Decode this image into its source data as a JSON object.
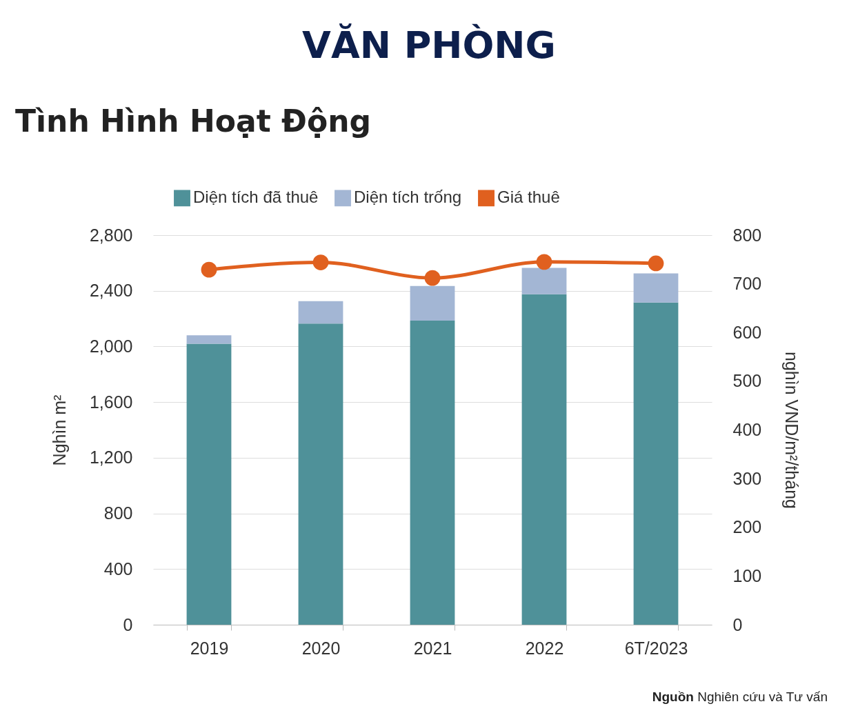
{
  "chart_data": {
    "type": "bar",
    "title": "VĂN PHÒNG",
    "subtitle": "Tình Hình Hoạt Động",
    "ylabel": "Nghìn m²",
    "y2label": "nghìn VND/m²/tháng",
    "categories": [
      "2019",
      "2020",
      "2021",
      "2022",
      "6T/2023"
    ],
    "series": [
      {
        "name": "Diện tích đã thuê",
        "color": "#4f9199",
        "values": [
          2020,
          2165,
          2185,
          2375,
          2315
        ]
      },
      {
        "name": "Diện tích trống",
        "color": "#a3b6d4",
        "values": [
          60,
          160,
          250,
          190,
          210
        ]
      },
      {
        "name": "Giá thuê",
        "type": "line",
        "axis": "y2",
        "color": "#e0601f",
        "values": [
          729,
          744,
          712,
          745,
          742
        ]
      }
    ],
    "stacked": true,
    "ylim": [
      0,
      2800
    ],
    "yticks": [
      0,
      400,
      800,
      {
        "value": 1200,
        "label": "1,200"
      },
      {
        "value": 1600,
        "label": "1,600"
      },
      {
        "value": 2000,
        "label": "2,000"
      },
      {
        "value": 2400,
        "label": "2,400"
      },
      {
        "value": 2800,
        "label": "2,800"
      }
    ],
    "y2lim": [
      0,
      800
    ],
    "y2ticks": [
      0,
      100,
      200,
      300,
      400,
      500,
      600,
      700,
      800
    ],
    "grid": "y",
    "legend": "top",
    "marker": "circle",
    "annotations": [
      "Nguồn Nghiên cứu và Tư vấn"
    ]
  }
}
